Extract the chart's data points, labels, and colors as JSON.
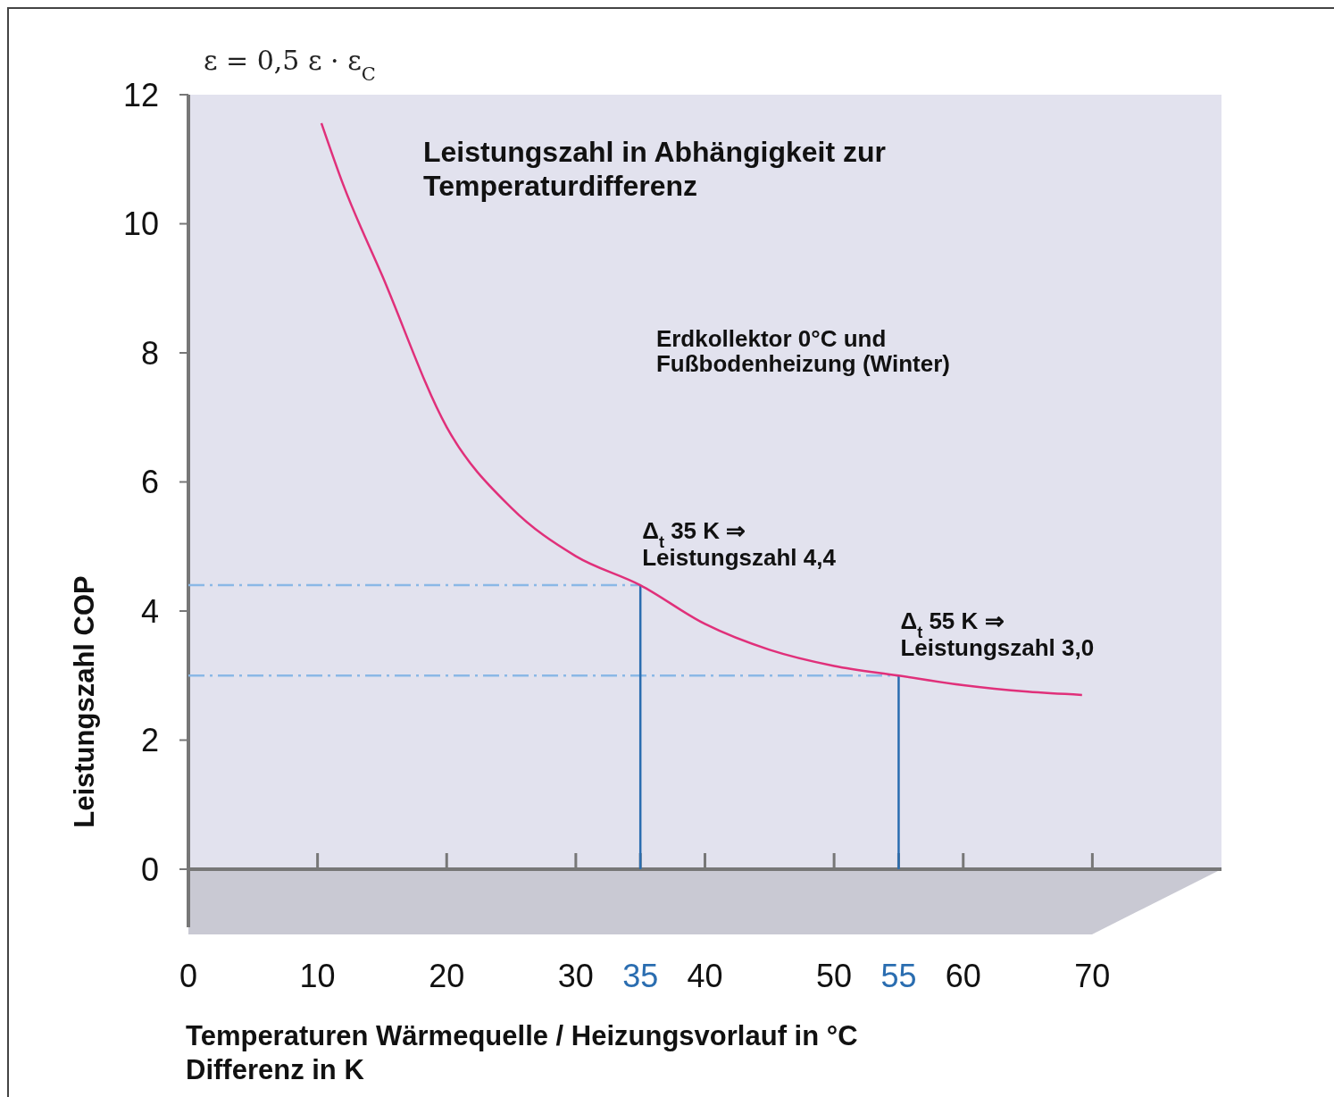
{
  "chart_data": {
    "type": "line",
    "title": "Leistungszahl in Abhängigkeit zur\nTemperaturdifferenz",
    "xlabel": "Temperaturen Wärmequelle / Heizungsvorlauf in °C\nDifferenz in K",
    "ylabel": "Leistungszahl COP",
    "x": [
      10.3,
      12,
      15,
      20,
      25,
      30,
      35,
      40,
      45,
      50,
      55,
      60,
      65,
      69.2
    ],
    "series": [
      {
        "name": "Erdkollektor 0°C und\nFußbodenheizung (Winter)",
        "color": "#e0307a",
        "values": [
          11.56,
          10.6,
          9.2,
          6.85,
          5.6,
          4.85,
          4.4,
          3.8,
          3.4,
          3.15,
          3.0,
          2.85,
          2.75,
          2.7
        ]
      }
    ],
    "xlim": [
      0,
      80
    ],
    "ylim": [
      0,
      12
    ],
    "xticks": [
      0,
      10,
      20,
      30,
      35,
      40,
      50,
      55,
      60,
      70
    ],
    "yticks": [
      0,
      2,
      4,
      6,
      8,
      10,
      12
    ],
    "grid": false,
    "marker": "none",
    "line_style": "solid",
    "ref_lines": [
      {
        "axis": "y",
        "value": 4.4,
        "color": "#8ab8e6",
        "line_style": "dashed"
      },
      {
        "axis": "y",
        "value": 3.0,
        "color": "#8ab8e6",
        "line_style": "dashed"
      },
      {
        "axis": "x",
        "value": 35,
        "color": "#2a6db0"
      },
      {
        "axis": "x",
        "value": 55,
        "color": "#2a6db0"
      }
    ],
    "annotations": [
      "ε = 0,5 ε · ε$_{C}$",
      {
        "text": "Δ$_{t}$ 35 K ⇒\nLeistungszahl 4,4",
        "x": 35,
        "y": 4.4
      },
      {
        "text": "Δ$_{t}$ 55 K ⇒\nLeistungszahl 3,0",
        "x": 55,
        "y": 3.0
      }
    ]
  }
}
